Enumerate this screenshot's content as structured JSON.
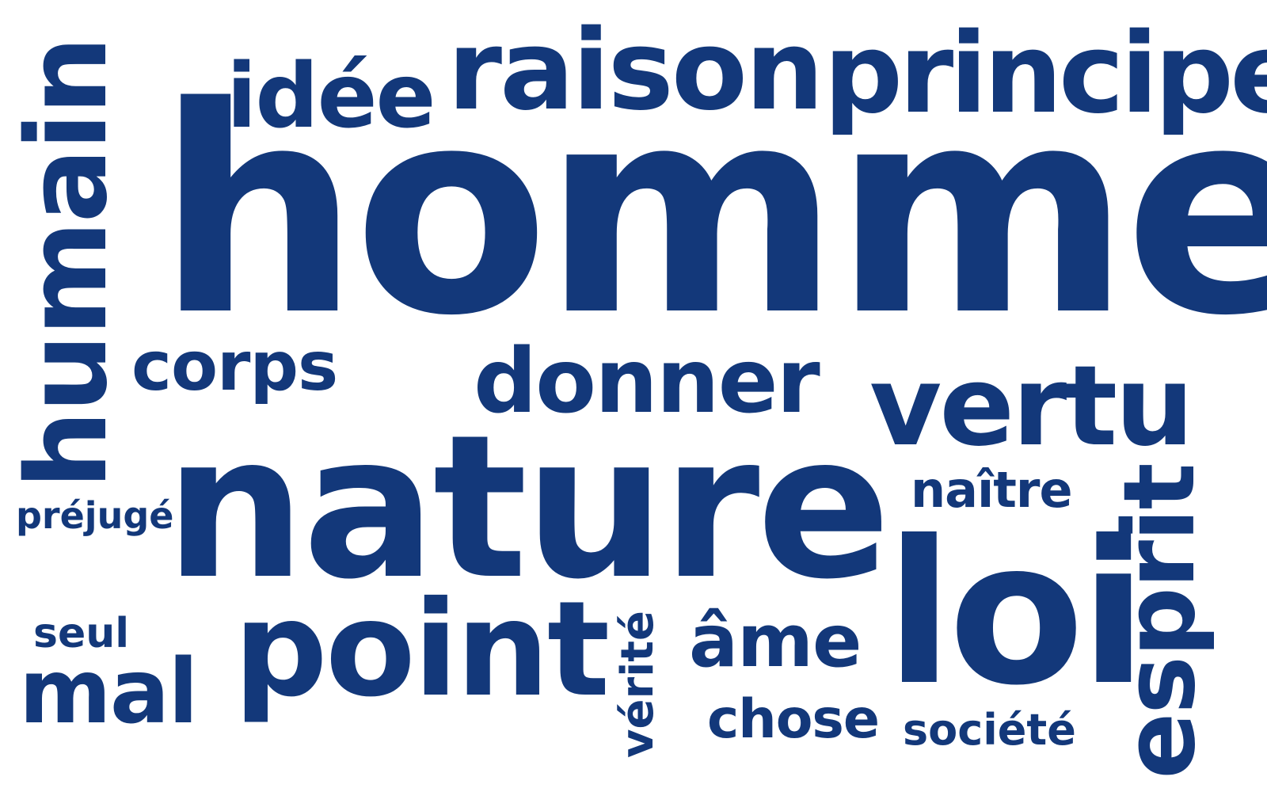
{
  "color": "#13387a",
  "background": "#ffffff",
  "words": {
    "homme": "homme",
    "nature": "nature",
    "loi": "loi",
    "raison": "raison",
    "principe": "principe",
    "humain": "humain",
    "idee": "idée",
    "point": "point",
    "vertu": "vertu",
    "donner": "donner",
    "corps": "corps",
    "esprit": "esprit",
    "mal": "mal",
    "ame": "âme",
    "chose": "chose",
    "naitre": "naître",
    "verite": "vérité",
    "seul": "seul",
    "prejuge": "préjugé",
    "societe": "société"
  }
}
